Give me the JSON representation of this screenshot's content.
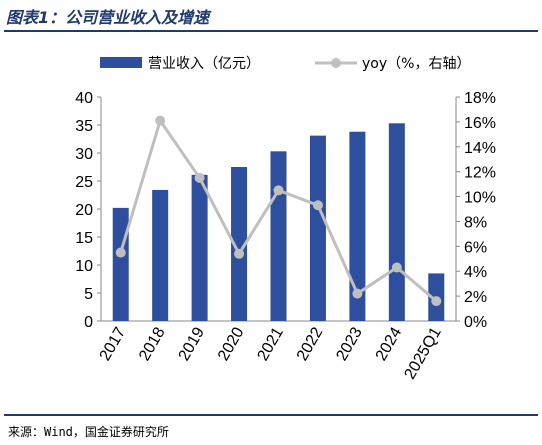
{
  "title": "图表1：公司营业收入及增速",
  "source": "来源：Wind，国金证券研究所",
  "chart_data": {
    "type": "bar",
    "categories": [
      "2017",
      "2018",
      "2019",
      "2020",
      "2021",
      "2022",
      "2023",
      "2024",
      "2025Q1"
    ],
    "series": [
      {
        "name": "营业收入（亿元）",
        "type": "bar",
        "axis": "left",
        "color": "#2e4e9e",
        "values": [
          20.2,
          23.4,
          26.1,
          27.5,
          30.3,
          33.1,
          33.8,
          35.3,
          8.5
        ]
      },
      {
        "name": "yoy（%，右轴）",
        "type": "line",
        "axis": "right",
        "color": "#bfbfbf",
        "values": [
          5.5,
          16.1,
          11.5,
          5.4,
          10.5,
          9.3,
          2.2,
          4.3,
          1.6
        ]
      }
    ],
    "left_axis": {
      "ylim": [
        0,
        40
      ],
      "ticks": [
        "0",
        "5",
        "10",
        "15",
        "20",
        "25",
        "30",
        "35",
        "40"
      ]
    },
    "right_axis": {
      "ylim": [
        0,
        18
      ],
      "ticks": [
        "0%",
        "2%",
        "4%",
        "6%",
        "8%",
        "10%",
        "12%",
        "14%",
        "16%",
        "18%"
      ]
    },
    "legend_position": "top",
    "grid": false
  }
}
